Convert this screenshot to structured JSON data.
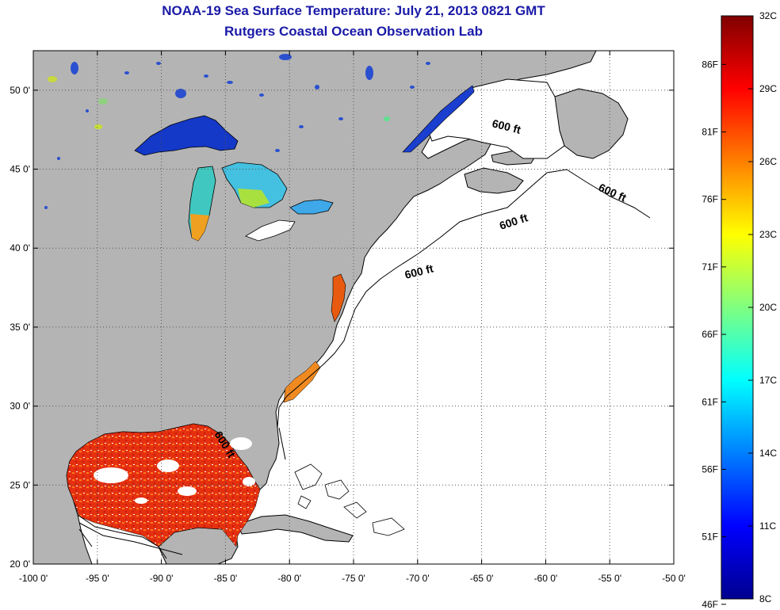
{
  "title": "NOAA-19 Sea Surface Temperature:  July 21, 2013 0821 GMT",
  "subtitle": "Rutgers Coastal Ocean Observation Lab",
  "map": {
    "lon_range": [
      -100,
      -50
    ],
    "lat_range": [
      20,
      52.5
    ],
    "lon_ticks": [
      "-100 0'",
      "-95 0'",
      "-90 0'",
      "-85 0'",
      "-80 0'",
      "-75 0'",
      "-70 0'",
      "-65 0'",
      "-60 0'",
      "-55 0'",
      "-50 0'"
    ],
    "lat_ticks": [
      "20 0'",
      "25 0'",
      "30 0'",
      "35 0'",
      "40 0'",
      "45 0'",
      "50 0'"
    ],
    "grid": true,
    "land_color": "#b4b4b4",
    "ocean_color": "#ffffff",
    "contour_labels": [
      "600 ft",
      "600 ft",
      "600 ft",
      "600 ft",
      "600 ft"
    ]
  },
  "colorbar": {
    "celsius": [
      "32C",
      "29C",
      "26C",
      "23C",
      "20C",
      "17C",
      "14C",
      "11C",
      "8C"
    ],
    "fahrenheit": [
      "86F",
      "81F",
      "76F",
      "71F",
      "66F",
      "61F",
      "56F",
      "51F",
      "46F"
    ],
    "min_c": 8,
    "max_c": 32
  }
}
